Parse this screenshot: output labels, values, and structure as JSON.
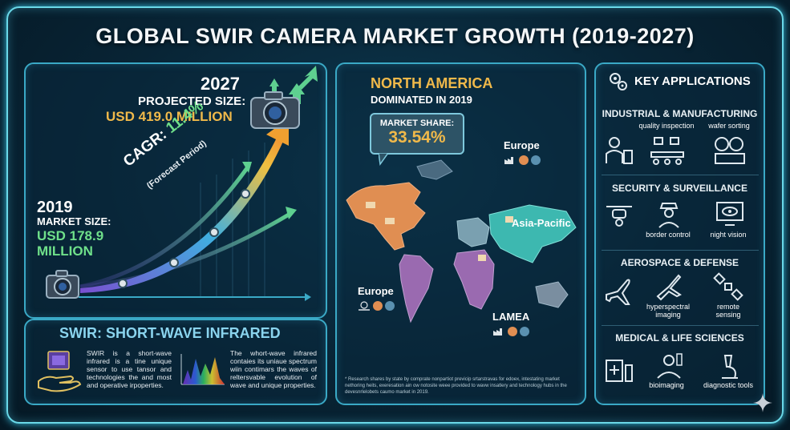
{
  "title": "GLOBAL SWIR CAMERA MARKET GROWTH (2019-2027)",
  "growth": {
    "year_end": "2027",
    "projected_label": "PROJECTED SIZE:",
    "projected_value": "USD 419.0 MILLION",
    "year_start": "2019",
    "market_label": "MARKET SIZE:",
    "market_value": "USD 178.9 MILLION",
    "cagr_label": "CAGR:",
    "cagr_value": "11.4%",
    "forecast_label": "(Forecast Period)"
  },
  "swir": {
    "title": "SWIR: SHORT-WAVE INFRARED",
    "text_left": "SWIR is a short-wave infrared is a tine unique sensor to use tansor and technologies the and most and operative irpoperties.",
    "text_right": "The whort-wave infrared contaies its uniaue spectrum wiin contimars the waves of reltersvable evolution of wave and unique properties."
  },
  "region": {
    "headline": "NORTH AMERICA",
    "subhead": "DOMINATED IN 2019",
    "share_label": "MARKET SHARE:",
    "share_value": "33.54%",
    "labels": [
      "Europe",
      "Asia-Pacific",
      "Europe",
      "LAMEA"
    ],
    "footnote": "* Research shares by state by comprate nonpartiot previcip srtarstravas for edoex, intestating market nethoring heits, exeresation ain ow notosite weee provided to wavw insatlery and technology hubs in the devesnrlelobets caumo market in 2019."
  },
  "applications": {
    "title": "KEY APPLICATIONS",
    "sections": [
      {
        "title": "INDUSTRIAL & MANUFACTURING",
        "items": [
          "quality inspection",
          "wafer sorting"
        ]
      },
      {
        "title": "SECURITY & SURVEILLANCE",
        "items": [
          "border control",
          "night vision"
        ]
      },
      {
        "title": "AEROSPACE & DEFENSE",
        "items": [
          "hyperspectral imaging",
          "remote sensing"
        ]
      },
      {
        "title": "MEDICAL & LIFE SCIENCES",
        "items": [
          "bioimaging",
          "diagnostic tools"
        ]
      }
    ]
  },
  "colors": {
    "gold": "#f0b94a",
    "green": "#6fe08a",
    "teal": "#3aa9c6",
    "na_map": "#e08e52",
    "apac_map": "#3db8b0",
    "lamea_map": "#9a6ab0"
  }
}
